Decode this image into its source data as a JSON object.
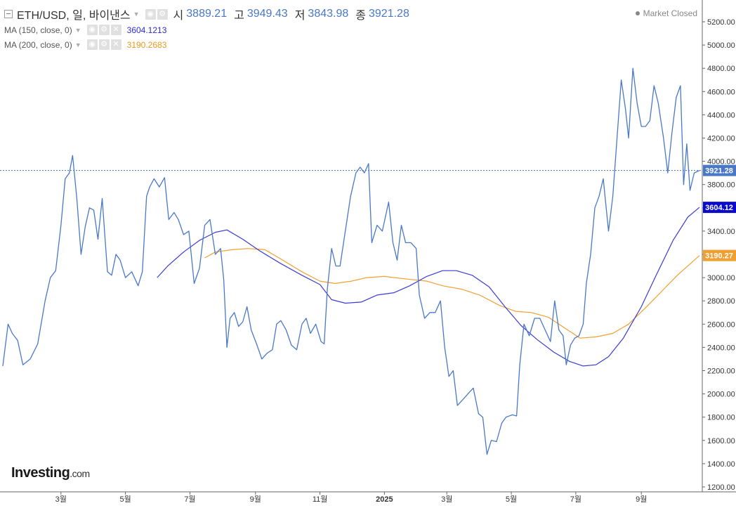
{
  "header": {
    "symbol": "ETH/USD, 일, 바이낸스",
    "ohlc": [
      {
        "label": "시",
        "value": "3889.21"
      },
      {
        "label": "고",
        "value": "3949.43"
      },
      {
        "label": "저",
        "value": "3843.98"
      },
      {
        "label": "종",
        "value": "3921.28"
      }
    ],
    "indicators": [
      {
        "label": "MA (150, close, 0)",
        "value": "3604.1213",
        "color": "#2b2bd9"
      },
      {
        "label": "MA (200, close, 0)",
        "value": "3190.2683",
        "color": "#E69A1E"
      }
    ],
    "market_status": "Market Closed",
    "icons": [
      "eye-icon",
      "gear-icon",
      "close-icon"
    ]
  },
  "logo": {
    "name": "Investing",
    "suffix": ".com"
  },
  "colors": {
    "price": "#4A78C8",
    "ma150": "#3b3bd6",
    "ma200": "#F0A030",
    "last_price_tag": "#4A78C8",
    "ma150_tag": "#0a0aCC",
    "ma200_tag": "#F0A030"
  },
  "chart_data": {
    "type": "line",
    "ylim": [
      1200,
      5300
    ],
    "yticks": [
      "5200.00",
      "5000.00",
      "4800.00",
      "4600.00",
      "4400.00",
      "4200.00",
      "4000.00",
      "3800.00",
      "3600.00",
      "3400.00",
      "3200.00",
      "3000.00",
      "2800.00",
      "2600.00",
      "2400.00",
      "2200.00",
      "2000.00",
      "1800.00",
      "1600.00",
      "1400.00",
      "1200.00"
    ],
    "x_range": [
      "2024-01-06",
      "2025-10-26"
    ],
    "xticks": [
      {
        "date": "2024-03-01",
        "label": "3월"
      },
      {
        "date": "2024-05-01",
        "label": "5월"
      },
      {
        "date": "2024-07-01",
        "label": "7월"
      },
      {
        "date": "2024-09-01",
        "label": "9월"
      },
      {
        "date": "2024-11-01",
        "label": "11월"
      },
      {
        "date": "2025-01-01",
        "label": "2025"
      },
      {
        "date": "2025-03-01",
        "label": "3월"
      },
      {
        "date": "2025-05-01",
        "label": "5월"
      },
      {
        "date": "2025-07-01",
        "label": "7월"
      },
      {
        "date": "2025-09-01",
        "label": "9월"
      }
    ],
    "last_price": 3921.28,
    "last_price_label": "3921.28",
    "series": [
      {
        "key": "price",
        "points": [
          [
            "2024-01-06",
            2240
          ],
          [
            "2024-01-11",
            2600
          ],
          [
            "2024-01-15",
            2520
          ],
          [
            "2024-01-20",
            2460
          ],
          [
            "2024-01-25",
            2250
          ],
          [
            "2024-02-01",
            2300
          ],
          [
            "2024-02-08",
            2430
          ],
          [
            "2024-02-15",
            2800
          ],
          [
            "2024-02-20",
            3000
          ],
          [
            "2024-02-25",
            3060
          ],
          [
            "2024-03-01",
            3450
          ],
          [
            "2024-03-05",
            3850
          ],
          [
            "2024-03-09",
            3900
          ],
          [
            "2024-03-12",
            4050
          ],
          [
            "2024-03-16",
            3680
          ],
          [
            "2024-03-20",
            3200
          ],
          [
            "2024-03-24",
            3440
          ],
          [
            "2024-03-28",
            3600
          ],
          [
            "2024-04-01",
            3580
          ],
          [
            "2024-04-05",
            3330
          ],
          [
            "2024-04-09",
            3680
          ],
          [
            "2024-04-14",
            3050
          ],
          [
            "2024-04-18",
            3020
          ],
          [
            "2024-04-22",
            3200
          ],
          [
            "2024-04-26",
            3150
          ],
          [
            "2024-05-01",
            3000
          ],
          [
            "2024-05-07",
            3050
          ],
          [
            "2024-05-13",
            2930
          ],
          [
            "2024-05-17",
            3050
          ],
          [
            "2024-05-21",
            3700
          ],
          [
            "2024-05-24",
            3780
          ],
          [
            "2024-05-28",
            3850
          ],
          [
            "2024-06-02",
            3780
          ],
          [
            "2024-06-07",
            3860
          ],
          [
            "2024-06-11",
            3500
          ],
          [
            "2024-06-16",
            3560
          ],
          [
            "2024-06-20",
            3500
          ],
          [
            "2024-06-25",
            3370
          ],
          [
            "2024-06-30",
            3400
          ],
          [
            "2024-07-05",
            2950
          ],
          [
            "2024-07-10",
            3080
          ],
          [
            "2024-07-15",
            3450
          ],
          [
            "2024-07-20",
            3500
          ],
          [
            "2024-07-25",
            3200
          ],
          [
            "2024-07-30",
            3250
          ],
          [
            "2024-08-02",
            2980
          ],
          [
            "2024-08-05",
            2400
          ],
          [
            "2024-08-08",
            2650
          ],
          [
            "2024-08-12",
            2700
          ],
          [
            "2024-08-16",
            2580
          ],
          [
            "2024-08-20",
            2620
          ],
          [
            "2024-08-24",
            2750
          ],
          [
            "2024-08-28",
            2550
          ],
          [
            "2024-09-02",
            2430
          ],
          [
            "2024-09-07",
            2300
          ],
          [
            "2024-09-12",
            2350
          ],
          [
            "2024-09-17",
            2380
          ],
          [
            "2024-09-21",
            2600
          ],
          [
            "2024-09-25",
            2630
          ],
          [
            "2024-09-30",
            2550
          ],
          [
            "2024-10-05",
            2420
          ],
          [
            "2024-10-10",
            2380
          ],
          [
            "2024-10-15",
            2600
          ],
          [
            "2024-10-19",
            2650
          ],
          [
            "2024-10-23",
            2520
          ],
          [
            "2024-10-28",
            2600
          ],
          [
            "2024-11-02",
            2450
          ],
          [
            "2024-11-05",
            2430
          ],
          [
            "2024-11-08",
            2900
          ],
          [
            "2024-11-12",
            3250
          ],
          [
            "2024-11-16",
            3100
          ],
          [
            "2024-11-20",
            3100
          ],
          [
            "2024-11-25",
            3400
          ],
          [
            "2024-11-30",
            3700
          ],
          [
            "2024-12-05",
            3900
          ],
          [
            "2024-12-09",
            3950
          ],
          [
            "2024-12-13",
            3900
          ],
          [
            "2024-12-17",
            3980
          ],
          [
            "2024-12-20",
            3300
          ],
          [
            "2024-12-25",
            3450
          ],
          [
            "2024-12-30",
            3400
          ],
          [
            "2025-01-05",
            3650
          ],
          [
            "2025-01-09",
            3300
          ],
          [
            "2025-01-13",
            3150
          ],
          [
            "2025-01-17",
            3450
          ],
          [
            "2025-01-21",
            3300
          ],
          [
            "2025-01-26",
            3300
          ],
          [
            "2025-01-31",
            3250
          ],
          [
            "2025-02-03",
            2850
          ],
          [
            "2025-02-08",
            2650
          ],
          [
            "2025-02-13",
            2700
          ],
          [
            "2025-02-18",
            2700
          ],
          [
            "2025-02-23",
            2800
          ],
          [
            "2025-02-27",
            2400
          ],
          [
            "2025-03-03",
            2150
          ],
          [
            "2025-03-07",
            2200
          ],
          [
            "2025-03-11",
            1900
          ],
          [
            "2025-03-16",
            1950
          ],
          [
            "2025-03-21",
            2000
          ],
          [
            "2025-03-26",
            2050
          ],
          [
            "2025-03-31",
            1830
          ],
          [
            "2025-04-04",
            1800
          ],
          [
            "2025-04-08",
            1480
          ],
          [
            "2025-04-12",
            1600
          ],
          [
            "2025-04-17",
            1590
          ],
          [
            "2025-04-22",
            1750
          ],
          [
            "2025-04-26",
            1800
          ],
          [
            "2025-05-02",
            1820
          ],
          [
            "2025-05-06",
            1810
          ],
          [
            "2025-05-09",
            2250
          ],
          [
            "2025-05-13",
            2600
          ],
          [
            "2025-05-18",
            2500
          ],
          [
            "2025-05-23",
            2650
          ],
          [
            "2025-05-28",
            2650
          ],
          [
            "2025-06-02",
            2550
          ],
          [
            "2025-06-07",
            2450
          ],
          [
            "2025-06-11",
            2800
          ],
          [
            "2025-06-15",
            2550
          ],
          [
            "2025-06-19",
            2500
          ],
          [
            "2025-06-22",
            2250
          ],
          [
            "2025-06-26",
            2420
          ],
          [
            "2025-06-30",
            2480
          ],
          [
            "2025-07-04",
            2500
          ],
          [
            "2025-07-08",
            2600
          ],
          [
            "2025-07-11",
            2950
          ],
          [
            "2025-07-15",
            3200
          ],
          [
            "2025-07-19",
            3600
          ],
          [
            "2025-07-23",
            3700
          ],
          [
            "2025-07-27",
            3850
          ],
          [
            "2025-08-01",
            3400
          ],
          [
            "2025-08-05",
            3700
          ],
          [
            "2025-08-09",
            4200
          ],
          [
            "2025-08-13",
            4700
          ],
          [
            "2025-08-17",
            4450
          ],
          [
            "2025-08-20",
            4200
          ],
          [
            "2025-08-24",
            4800
          ],
          [
            "2025-08-28",
            4500
          ],
          [
            "2025-09-01",
            4300
          ],
          [
            "2025-09-05",
            4300
          ],
          [
            "2025-09-09",
            4350
          ],
          [
            "2025-09-13",
            4650
          ],
          [
            "2025-09-17",
            4500
          ],
          [
            "2025-09-22",
            4200
          ],
          [
            "2025-09-26",
            3900
          ],
          [
            "2025-09-30",
            4250
          ],
          [
            "2025-10-04",
            4550
          ],
          [
            "2025-10-08",
            4650
          ],
          [
            "2025-10-11",
            3800
          ],
          [
            "2025-10-14",
            4150
          ],
          [
            "2025-10-17",
            3750
          ],
          [
            "2025-10-21",
            3900
          ],
          [
            "2025-10-26",
            3921
          ]
        ]
      },
      {
        "key": "ma150",
        "points": [
          [
            "2024-05-31",
            3000
          ],
          [
            "2024-06-10",
            3100
          ],
          [
            "2024-06-25",
            3220
          ],
          [
            "2024-07-10",
            3320
          ],
          [
            "2024-07-25",
            3390
          ],
          [
            "2024-08-05",
            3410
          ],
          [
            "2024-08-20",
            3330
          ],
          [
            "2024-09-05",
            3230
          ],
          [
            "2024-09-25",
            3120
          ],
          [
            "2024-10-15",
            3020
          ],
          [
            "2024-11-01",
            2940
          ],
          [
            "2024-11-12",
            2810
          ],
          [
            "2024-11-25",
            2780
          ],
          [
            "2024-12-10",
            2790
          ],
          [
            "2024-12-25",
            2850
          ],
          [
            "2025-01-10",
            2870
          ],
          [
            "2025-01-25",
            2930
          ],
          [
            "2025-02-10",
            3010
          ],
          [
            "2025-02-25",
            3060
          ],
          [
            "2025-03-10",
            3060
          ],
          [
            "2025-03-25",
            3020
          ],
          [
            "2025-04-10",
            2920
          ],
          [
            "2025-04-25",
            2750
          ],
          [
            "2025-05-10",
            2590
          ],
          [
            "2025-05-25",
            2470
          ],
          [
            "2025-06-10",
            2360
          ],
          [
            "2025-06-25",
            2280
          ],
          [
            "2025-07-08",
            2240
          ],
          [
            "2025-07-20",
            2250
          ],
          [
            "2025-08-01",
            2320
          ],
          [
            "2025-08-15",
            2480
          ],
          [
            "2025-09-01",
            2750
          ],
          [
            "2025-09-15",
            3020
          ],
          [
            "2025-10-01",
            3320
          ],
          [
            "2025-10-15",
            3520
          ],
          [
            "2025-10-26",
            3604
          ]
        ]
      },
      {
        "key": "ma200",
        "points": [
          [
            "2024-07-15",
            3170
          ],
          [
            "2024-07-25",
            3220
          ],
          [
            "2024-08-10",
            3240
          ],
          [
            "2024-08-25",
            3250
          ],
          [
            "2024-09-10",
            3240
          ],
          [
            "2024-09-25",
            3160
          ],
          [
            "2024-10-15",
            3050
          ],
          [
            "2024-11-01",
            2970
          ],
          [
            "2024-11-15",
            2950
          ],
          [
            "2024-12-01",
            2970
          ],
          [
            "2024-12-15",
            3000
          ],
          [
            "2025-01-01",
            3010
          ],
          [
            "2025-01-20",
            2990
          ],
          [
            "2025-02-10",
            2970
          ],
          [
            "2025-02-25",
            2930
          ],
          [
            "2025-03-15",
            2900
          ],
          [
            "2025-04-01",
            2850
          ],
          [
            "2025-04-20",
            2760
          ],
          [
            "2025-05-05",
            2710
          ],
          [
            "2025-05-20",
            2700
          ],
          [
            "2025-06-05",
            2660
          ],
          [
            "2025-06-20",
            2570
          ],
          [
            "2025-07-05",
            2480
          ],
          [
            "2025-07-20",
            2490
          ],
          [
            "2025-08-05",
            2520
          ],
          [
            "2025-08-20",
            2600
          ],
          [
            "2025-09-05",
            2740
          ],
          [
            "2025-09-20",
            2880
          ],
          [
            "2025-10-05",
            3020
          ],
          [
            "2025-10-26",
            3190
          ]
        ]
      }
    ]
  }
}
